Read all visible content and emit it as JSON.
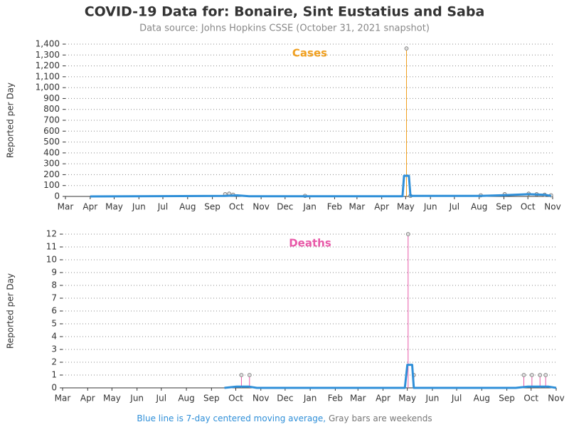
{
  "header": {
    "title": "COVID-19 Data for: Bonaire, Sint Eustatius and Saba",
    "subtitle": "Data source: Johns Hopkins CSSE (October 31, 2021 snapshot)"
  },
  "footer": {
    "blue_note": "Blue line is 7-day centered moving average,",
    "gray_note": "Gray bars are weekends",
    "blue_color": "#2f8fd8",
    "gray_color": "#777777"
  },
  "chart_data": [
    {
      "type": "line",
      "title": "Cases",
      "title_color": "#f0a020",
      "ylabel": "Reported per Day",
      "grid": true,
      "xlim": [
        0,
        610
      ],
      "xticks": [
        {
          "value": 0,
          "label": "Mar"
        },
        {
          "value": 31,
          "label": "Apr"
        },
        {
          "value": 61,
          "label": "May"
        },
        {
          "value": 92,
          "label": "Jun"
        },
        {
          "value": 122,
          "label": "Jul"
        },
        {
          "value": 153,
          "label": "Aug"
        },
        {
          "value": 184,
          "label": "Sep"
        },
        {
          "value": 214,
          "label": "Oct"
        },
        {
          "value": 245,
          "label": "Nov"
        },
        {
          "value": 275,
          "label": "Dec"
        },
        {
          "value": 306,
          "label": "Jan"
        },
        {
          "value": 337,
          "label": "Feb"
        },
        {
          "value": 365,
          "label": "Mar"
        },
        {
          "value": 396,
          "label": "Apr"
        },
        {
          "value": 426,
          "label": "May"
        },
        {
          "value": 457,
          "label": "Jun"
        },
        {
          "value": 487,
          "label": "Jul"
        },
        {
          "value": 518,
          "label": "Aug"
        },
        {
          "value": 549,
          "label": "Sep"
        },
        {
          "value": 579,
          "label": "Oct"
        },
        {
          "value": 610,
          "label": "Nov"
        }
      ],
      "ylim": [
        0,
        1400
      ],
      "yticks": [
        0,
        100,
        200,
        300,
        400,
        500,
        600,
        700,
        800,
        900,
        {
          "value": 1000,
          "label": "1,000"
        },
        {
          "value": 1100,
          "label": "1,100"
        },
        {
          "value": 1200,
          "label": "1,200"
        },
        {
          "value": 1300,
          "label": "1,300"
        },
        {
          "value": 1400,
          "label": "1,400"
        }
      ],
      "series": [
        {
          "style": "stem",
          "color": "#f0a020",
          "x": [
            200,
            205,
            210,
            300,
            427,
            432,
            520,
            550,
            580,
            590,
            600,
            608
          ],
          "values": [
            20,
            25,
            15,
            5,
            1360,
            5,
            10,
            20,
            25,
            20,
            15,
            10
          ]
        },
        {
          "style": "line",
          "color": "#2f8fd8",
          "x": [
            31,
            200,
            215,
            230,
            422,
            424,
            430,
            432,
            520,
            550,
            580,
            600,
            608
          ],
          "values": [
            0,
            5,
            10,
            2,
            2,
            190,
            190,
            5,
            5,
            12,
            20,
            15,
            5
          ]
        }
      ]
    },
    {
      "type": "line",
      "title": "Deaths",
      "title_color": "#e85aa8",
      "ylabel": "Reported per Day",
      "grid": true,
      "xlim": [
        0,
        610
      ],
      "xticks": [
        {
          "value": 0,
          "label": "Mar"
        },
        {
          "value": 31,
          "label": "Apr"
        },
        {
          "value": 61,
          "label": "May"
        },
        {
          "value": 92,
          "label": "Jun"
        },
        {
          "value": 122,
          "label": "Jul"
        },
        {
          "value": 153,
          "label": "Aug"
        },
        {
          "value": 184,
          "label": "Sep"
        },
        {
          "value": 214,
          "label": "Oct"
        },
        {
          "value": 245,
          "label": "Nov"
        },
        {
          "value": 275,
          "label": "Dec"
        },
        {
          "value": 306,
          "label": "Jan"
        },
        {
          "value": 337,
          "label": "Feb"
        },
        {
          "value": 365,
          "label": "Mar"
        },
        {
          "value": 396,
          "label": "Apr"
        },
        {
          "value": 426,
          "label": "May"
        },
        {
          "value": 457,
          "label": "Jun"
        },
        {
          "value": 487,
          "label": "Jul"
        },
        {
          "value": 518,
          "label": "Aug"
        },
        {
          "value": 549,
          "label": "Sep"
        },
        {
          "value": 579,
          "label": "Oct"
        },
        {
          "value": 610,
          "label": "Nov"
        }
      ],
      "ylim": [
        0,
        12
      ],
      "yticks": [
        0,
        1,
        2,
        3,
        4,
        5,
        6,
        7,
        8,
        9,
        10,
        11,
        12
      ],
      "series": [
        {
          "style": "stem",
          "color": "#e85aa8",
          "x": [
            221,
            231,
            427,
            434,
            570,
            580,
            590,
            597
          ],
          "values": [
            1,
            1,
            12,
            1,
            1,
            1,
            1,
            1
          ]
        },
        {
          "style": "line",
          "color": "#2f8fd8",
          "x": [
            200,
            215,
            230,
            240,
            423,
            426,
            432,
            434,
            560,
            575,
            600,
            610
          ],
          "values": [
            0,
            0.1,
            0.1,
            0,
            0,
            1.8,
            1.8,
            0,
            0,
            0.1,
            0.1,
            0
          ]
        }
      ]
    }
  ]
}
